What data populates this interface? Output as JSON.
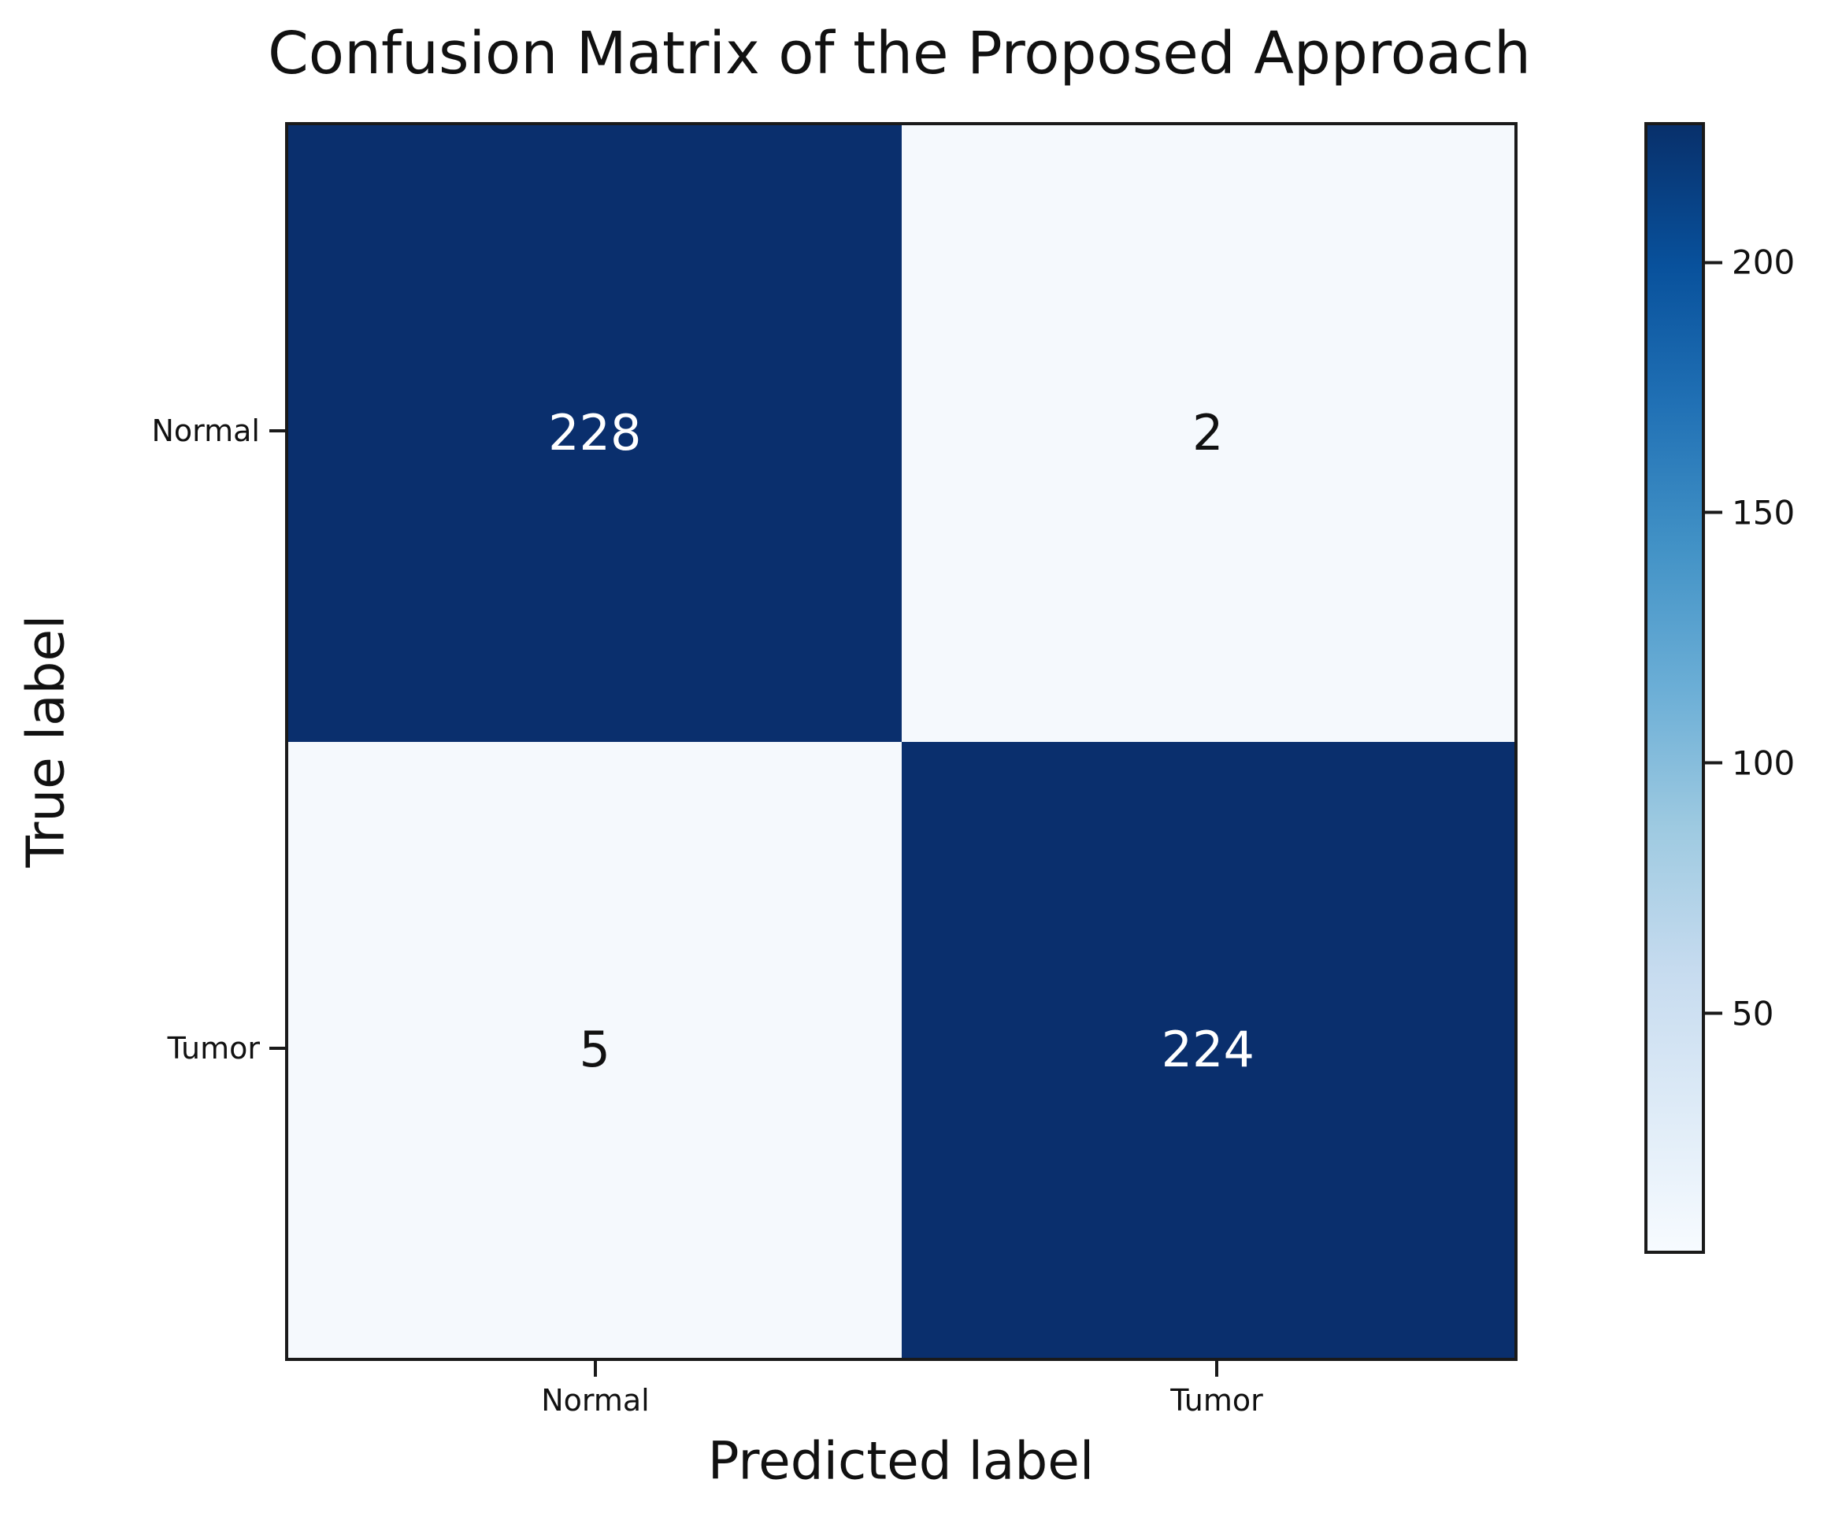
{
  "colors": {
    "background": "#ffffff",
    "cell_dark": "#0a2f6d",
    "cell_light": "#f5f9fd",
    "text_on_dark": "#ffffff",
    "text_on_light": "#111111",
    "axis_color": "#1a1a1a"
  },
  "chart_data": {
    "type": "heatmap",
    "title": "Confusion Matrix of the Proposed Approach",
    "xlabel": "Predicted label",
    "ylabel": "True label",
    "x_categories": [
      "Normal",
      "Tumor"
    ],
    "y_categories": [
      "Normal",
      "Tumor"
    ],
    "matrix": [
      [
        228,
        2
      ],
      [
        5,
        224
      ]
    ],
    "cell_text_colors": [
      [
        "white",
        "black"
      ],
      [
        "black",
        "white"
      ]
    ],
    "colormap_name": "Blues",
    "colormap_stops": [
      "#f7fbff",
      "#deebf7",
      "#c6dbef",
      "#9ecae1",
      "#6baed6",
      "#4292c6",
      "#2171b5",
      "#08519c",
      "#08306b"
    ],
    "colorbar": {
      "vmin": 2,
      "vmax": 228,
      "ticks": [
        50,
        100,
        150,
        200
      ],
      "position": "right"
    },
    "grid": false,
    "legend": false
  }
}
